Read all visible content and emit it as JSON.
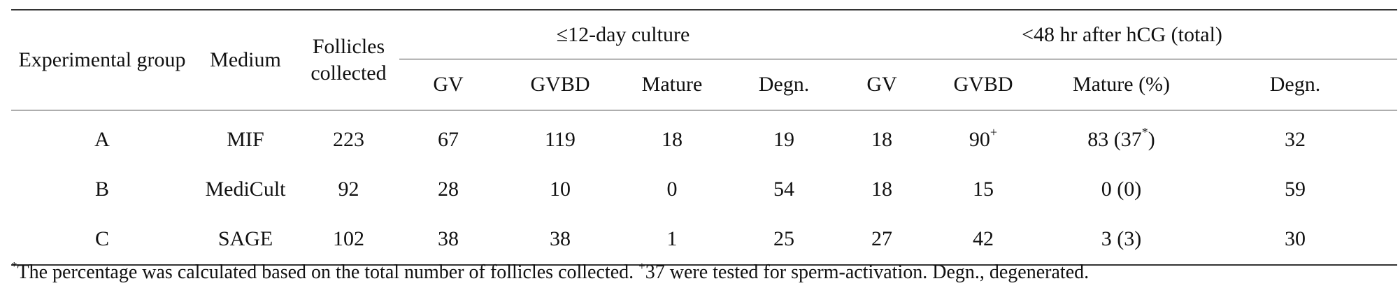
{
  "table": {
    "headers": {
      "experimental_group": "Experimental group",
      "medium": "Medium",
      "follicles_line1": "Follicles",
      "follicles_line2": "collected",
      "culture_group": "≤12-day culture",
      "hcg_group": "<48 hr after hCG (total)",
      "sub": {
        "gv1": "GV",
        "gvbd1": "GVBD",
        "mature1": "Mature",
        "degn1": "Degn.",
        "gv2": "GV",
        "gvbd2": "GVBD",
        "mature2": "Mature (%)",
        "degn2": "Degn."
      }
    },
    "rows": [
      {
        "group": "A",
        "medium": "MIF",
        "follicles": "223",
        "gv1": "67",
        "gvbd1": "119",
        "mature1": "18",
        "degn1": "19",
        "gv2": "18",
        "gvbd2": "90",
        "gvbd2_sup": "+",
        "mature2_pre": "83 (37",
        "mature2_sup": "*",
        "mature2_post": ")",
        "degn2": "32"
      },
      {
        "group": "B",
        "medium": "MediCult",
        "follicles": "92",
        "gv1": "28",
        "gvbd1": "10",
        "mature1": "0",
        "degn1": "54",
        "gv2": "18",
        "gvbd2": "15",
        "mature2": "0 (0)",
        "degn2": "59"
      },
      {
        "group": "C",
        "medium": "SAGE",
        "follicles": "102",
        "gv1": "38",
        "gvbd1": "38",
        "mature1": "1",
        "degn1": "25",
        "gv2": "27",
        "gvbd2": "42",
        "mature2": "3 (3)",
        "degn2": "30"
      }
    ]
  },
  "footnote": {
    "sup1": "*",
    "text1": "The percentage was calculated based on the total number of follicles collected. ",
    "sup2": "+",
    "text2": "37 were tested for sperm-activation. Degn., degenerated."
  }
}
